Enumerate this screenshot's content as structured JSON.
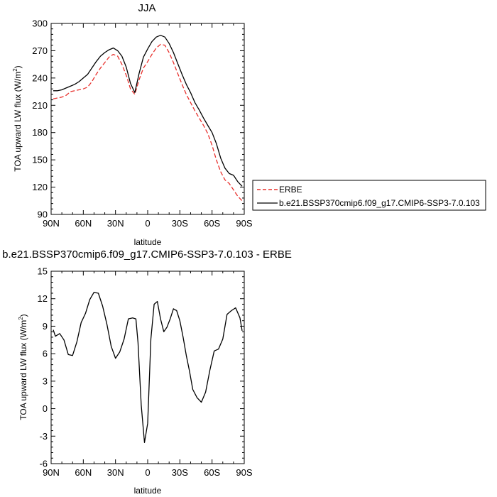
{
  "chart_data": [
    {
      "type": "line",
      "title": "JJA",
      "xlabel": "latitude",
      "ylabel": "TOA upward LW flux (W/m",
      "ylabel_sup": "2",
      "ylabel_tail": ")",
      "xlim": [
        90,
        -90
      ],
      "ylim": [
        90,
        300
      ],
      "xticks": [
        90,
        60,
        30,
        0,
        -30,
        -60,
        -90
      ],
      "xticklabels": [
        "90N",
        "60N",
        "30N",
        "0",
        "30S",
        "60S",
        "90S"
      ],
      "yticks": [
        90,
        120,
        150,
        180,
        210,
        240,
        270,
        300
      ],
      "yticklabels": [
        "90",
        "120",
        "150",
        "180",
        "210",
        "240",
        "270",
        "300"
      ],
      "legend": "right, outside plot",
      "x": [
        88,
        84,
        80,
        76,
        72,
        68,
        64,
        60,
        56,
        52,
        48,
        44,
        40,
        36,
        32,
        28,
        24,
        20,
        16,
        12,
        8,
        4,
        0,
        -4,
        -8,
        -12,
        -16,
        -20,
        -24,
        -28,
        -32,
        -36,
        -40,
        -44,
        -48,
        -52,
        -56,
        -60,
        -64,
        -68,
        -72,
        -76,
        -80,
        -84,
        -88
      ],
      "series": [
        {
          "name": "ERBE",
          "color": "#e8302c",
          "dash": "dashed",
          "values": [
            217,
            218,
            219,
            221,
            225,
            226,
            227,
            228,
            230,
            236,
            244,
            251,
            257,
            263,
            266,
            264,
            255,
            243,
            228,
            222,
            238,
            251,
            258,
            266,
            273,
            277,
            276,
            268,
            257,
            245,
            233,
            222,
            213,
            204,
            196,
            188,
            179,
            166,
            150,
            137,
            128,
            124,
            117,
            110,
            105
          ]
        },
        {
          "name": "b.e21.BSSP370cmip6.f09_g17.CMIP6-SSP3-7.0.103",
          "color": "#000000",
          "dash": "solid",
          "values": [
            226,
            226,
            227,
            229,
            231,
            233,
            236,
            240,
            244,
            251,
            258,
            264,
            268,
            271,
            273,
            270,
            264,
            252,
            234,
            224,
            245,
            263,
            272,
            280,
            285,
            287,
            285,
            278,
            268,
            256,
            244,
            233,
            224,
            213,
            205,
            196,
            188,
            180,
            168,
            152,
            141,
            135,
            133,
            126,
            121
          ]
        }
      ]
    },
    {
      "type": "line",
      "title": "b.e21.BSSP370cmip6.f09_g17.CMIP6-SSP3-7.0.103 - ERBE",
      "xlabel": "latitude",
      "ylabel": "TOA upward LW flux (W/m",
      "ylabel_sup": "2",
      "ylabel_tail": ")",
      "xlim": [
        90,
        -90
      ],
      "ylim": [
        -6,
        15
      ],
      "xticks": [
        90,
        60,
        30,
        0,
        -30,
        -60,
        -90
      ],
      "xticklabels": [
        "90N",
        "60N",
        "30N",
        "0",
        "30S",
        "60S",
        "90S"
      ],
      "yticks": [
        -6,
        -3,
        0,
        3,
        6,
        9,
        12,
        15
      ],
      "yticklabels": [
        "-6",
        "-3",
        "0",
        "3",
        "6",
        "9",
        "12",
        "15"
      ],
      "x": [
        88,
        86,
        82,
        78,
        74,
        70,
        66,
        62,
        58,
        54,
        50,
        46,
        42,
        38,
        34,
        30,
        26,
        22,
        18,
        14,
        11,
        9,
        6,
        3,
        0,
        -3,
        -6,
        -9,
        -12,
        -15,
        -18,
        -21,
        -24,
        -27,
        -30,
        -33,
        -36,
        -39,
        -42,
        -46,
        -50,
        -54,
        -58,
        -62,
        -66,
        -70,
        -74,
        -78,
        -82,
        -86,
        -88
      ],
      "series": [
        {
          "name": "",
          "color": "#000000",
          "dash": "solid",
          "values": [
            8.6,
            7.9,
            8.2,
            7.5,
            5.9,
            5.8,
            7.3,
            9.4,
            10.4,
            11.9,
            12.7,
            12.6,
            11.2,
            9.2,
            6.8,
            5.5,
            6.2,
            7.6,
            9.8,
            9.9,
            9.8,
            7.2,
            0.4,
            -3.7,
            -1.6,
            7.6,
            11.4,
            11.7,
            9.8,
            8.4,
            8.9,
            9.8,
            10.9,
            10.7,
            9.6,
            7.8,
            5.8,
            4.1,
            2.1,
            1.2,
            0.7,
            1.8,
            4.2,
            6.3,
            6.5,
            7.6,
            10.3,
            10.7,
            11.0,
            9.9,
            8.5
          ]
        }
      ]
    }
  ]
}
